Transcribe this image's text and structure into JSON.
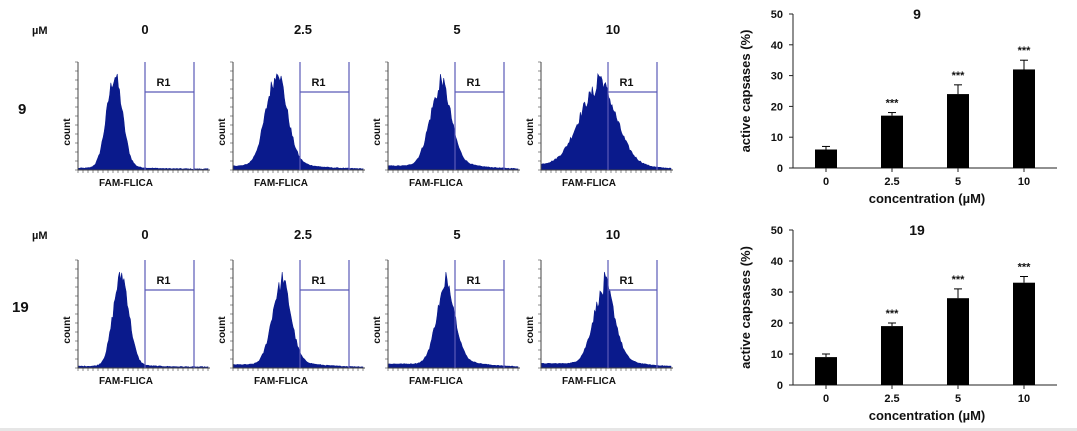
{
  "flow_panel": {
    "unit_label": "µM",
    "concentrations": [
      "0",
      "2.5",
      "5",
      "10"
    ],
    "gate_label": "R1",
    "x_axis_label": "FAM-FLICA",
    "y_axis_label": "count",
    "rows": [
      {
        "compound": "9",
        "histograms": [
          {
            "peak_position": 0.28,
            "spread": 0.06,
            "shoulder": 0.05
          },
          {
            "peak_position": 0.33,
            "spread": 0.08,
            "shoulder": 0.18
          },
          {
            "peak_position": 0.4,
            "spread": 0.08,
            "shoulder": 0.22
          },
          {
            "peak_position": 0.43,
            "spread": 0.14,
            "shoulder": 0.3
          }
        ]
      },
      {
        "compound": "19",
        "histograms": [
          {
            "peak_position": 0.33,
            "spread": 0.06,
            "shoulder": 0.05
          },
          {
            "peak_position": 0.37,
            "spread": 0.07,
            "shoulder": 0.16
          },
          {
            "peak_position": 0.44,
            "spread": 0.07,
            "shoulder": 0.22
          },
          {
            "peak_position": 0.48,
            "spread": 0.08,
            "shoulder": 0.26
          }
        ]
      }
    ]
  },
  "chart_data": [
    {
      "type": "bar",
      "title": "9",
      "categories": [
        "0",
        "2.5",
        "5",
        "10"
      ],
      "values": [
        6,
        17,
        24,
        32
      ],
      "errors": [
        1,
        1,
        3,
        3
      ],
      "annotations": [
        "",
        "***",
        "***",
        "***"
      ],
      "xlabel": "concentration (µM)",
      "ylabel": "active capsases (%)",
      "ylim": [
        0,
        50
      ],
      "yticks": [
        0,
        10,
        20,
        30,
        40,
        50
      ],
      "bar_color": "#000000"
    },
    {
      "type": "bar",
      "title": "19",
      "categories": [
        "0",
        "2.5",
        "5",
        "10"
      ],
      "values": [
        9,
        19,
        28,
        33
      ],
      "errors": [
        1,
        1,
        3,
        2
      ],
      "annotations": [
        "",
        "***",
        "***",
        "***"
      ],
      "xlabel": "concentration (µM)",
      "ylabel": "active capsases (%)",
      "ylim": [
        0,
        50
      ],
      "yticks": [
        0,
        10,
        20,
        30,
        40,
        50
      ],
      "bar_color": "#000000"
    }
  ],
  "colors": {
    "histogram_fill": "#0a1a8c",
    "gate_line": "#5a5ab8",
    "axis": "#444444"
  }
}
